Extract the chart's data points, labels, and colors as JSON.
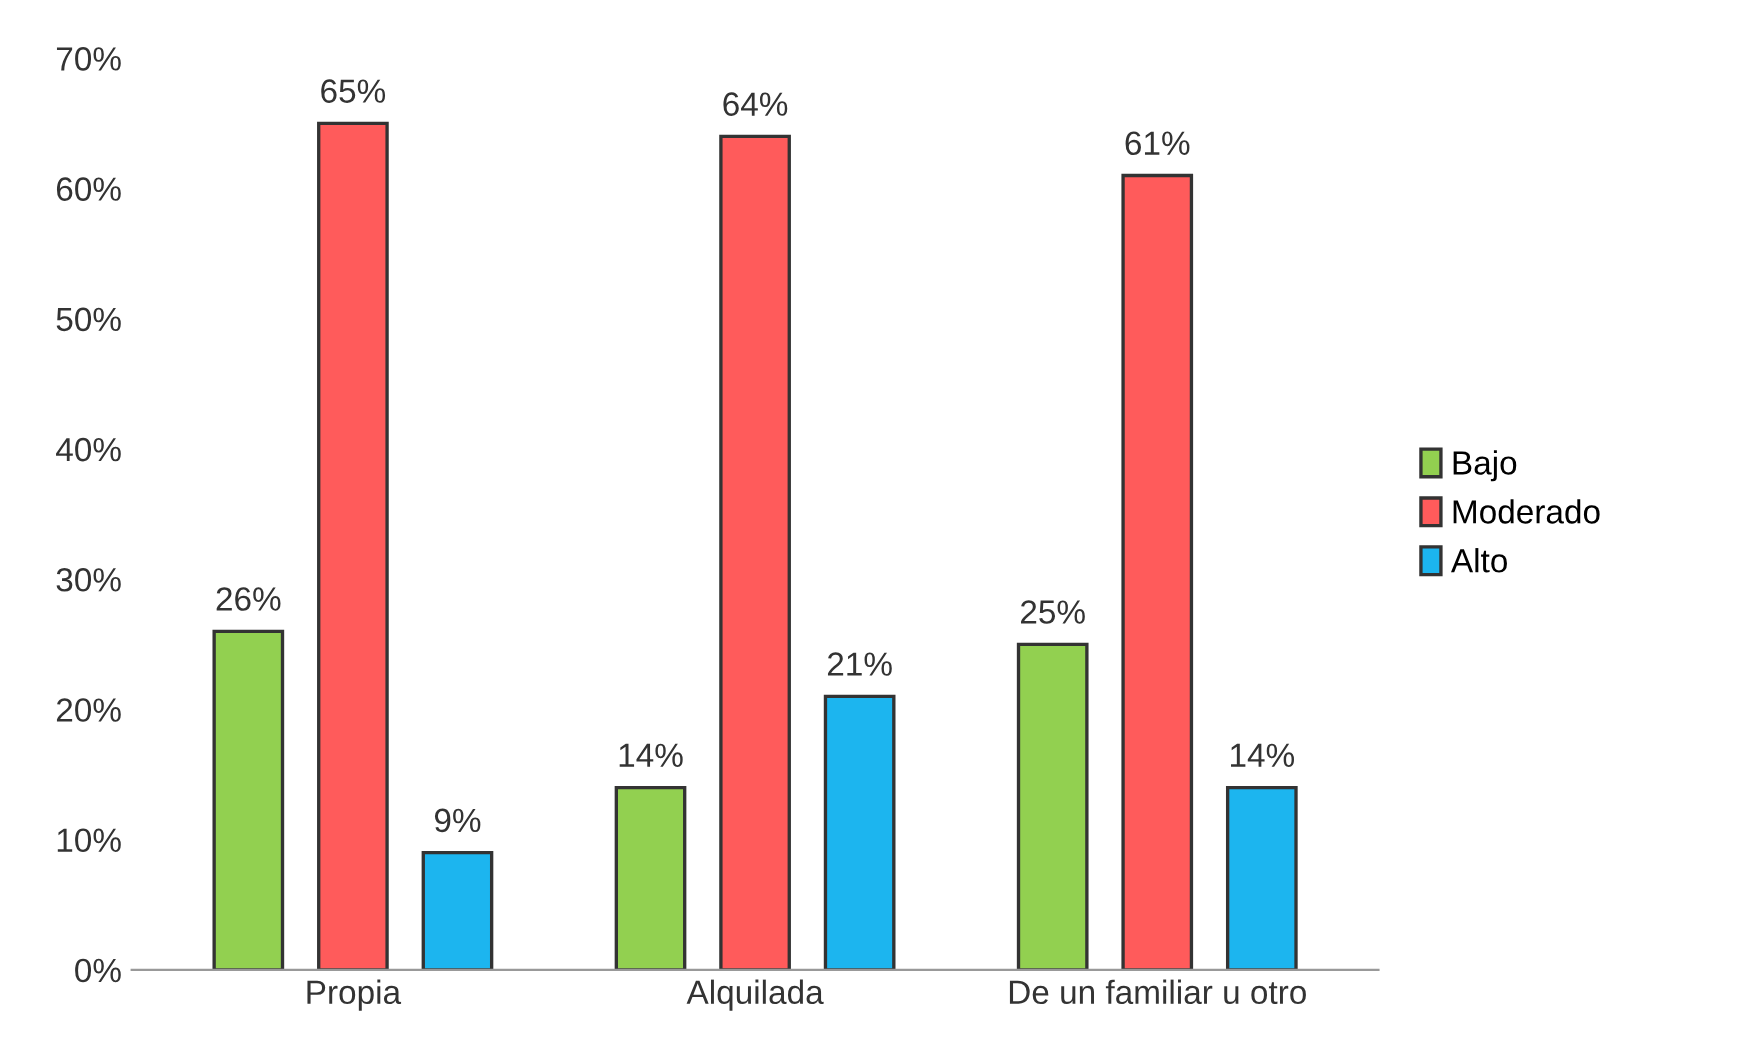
{
  "chart_data": {
    "type": "bar",
    "categories": [
      "Propia",
      "Alquilada",
      "De un familiar u otro"
    ],
    "series": [
      {
        "name": "Bajo",
        "color": "#92d050",
        "values": [
          26,
          14,
          25
        ],
        "value_labels": [
          "26%",
          "14%",
          "25%"
        ]
      },
      {
        "name": "Moderado",
        "color": "#ff5b5b",
        "values": [
          65,
          64,
          61
        ],
        "value_labels": [
          "65%",
          "64%",
          "61%"
        ]
      },
      {
        "name": "Alto",
        "color": "#1cb5ef",
        "values": [
          9,
          21,
          14
        ],
        "value_labels": [
          "9%",
          "21%",
          "14%"
        ]
      }
    ],
    "ylim": [
      0,
      70
    ],
    "yticks": [
      {
        "value": 0,
        "label": "0%"
      },
      {
        "value": 10,
        "label": "10%"
      },
      {
        "value": 20,
        "label": "20%"
      },
      {
        "value": 30,
        "label": "30%"
      },
      {
        "value": 40,
        "label": "40%"
      },
      {
        "value": 50,
        "label": "50%"
      },
      {
        "value": 60,
        "label": "60%"
      },
      {
        "value": 70,
        "label": "70%"
      }
    ],
    "grid": false,
    "legend": "right"
  }
}
